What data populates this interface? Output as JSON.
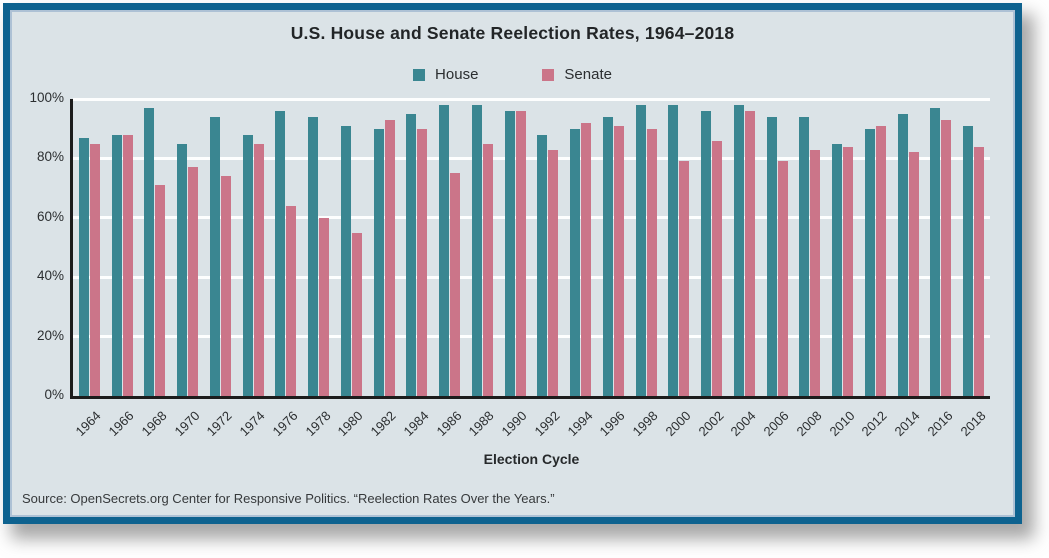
{
  "card": {
    "background": "#dbe3e7",
    "border_color": "#0e628f"
  },
  "title": "U.S. House and Senate Reelection Rates, 1964–2018",
  "source": "Source: OpenSecrets.org Center for Responsive Politics. “Reelection Rates Over the Years.”",
  "chart_data": {
    "type": "bar",
    "title": "U.S. House and Senate Reelection Rates, 1964–2018",
    "xlabel": "Election Cycle",
    "ylabel": "",
    "ylim": [
      0,
      100
    ],
    "ytick_labels": [
      "0%",
      "20%",
      "40%",
      "60%",
      "80%",
      "100%"
    ],
    "ytick_values": [
      0,
      20,
      40,
      60,
      80,
      100
    ],
    "grid": true,
    "gridline_color": "#fdfefe",
    "legend_position": "top-center",
    "categories": [
      "1964",
      "1966",
      "1968",
      "1970",
      "1972",
      "1974",
      "1976",
      "1978",
      "1980",
      "1982",
      "1984",
      "1986",
      "1988",
      "1990",
      "1992",
      "1994",
      "1996",
      "1998",
      "2000",
      "2002",
      "2004",
      "2006",
      "2008",
      "2010",
      "2012",
      "2014",
      "2016",
      "2018"
    ],
    "series": [
      {
        "name": "House",
        "color": "#3a8691",
        "values": [
          87,
          88,
          97,
          85,
          94,
          88,
          96,
          94,
          91,
          90,
          95,
          98,
          98,
          96,
          88,
          90,
          94,
          98,
          98,
          96,
          98,
          94,
          94,
          85,
          90,
          95,
          97,
          91
        ]
      },
      {
        "name": "Senate",
        "color": "#cb7589",
        "values": [
          85,
          88,
          71,
          77,
          74,
          85,
          64,
          60,
          55,
          93,
          90,
          75,
          85,
          96,
          83,
          92,
          91,
          90,
          79,
          86,
          96,
          79,
          83,
          84,
          91,
          82,
          93,
          84
        ]
      }
    ]
  }
}
